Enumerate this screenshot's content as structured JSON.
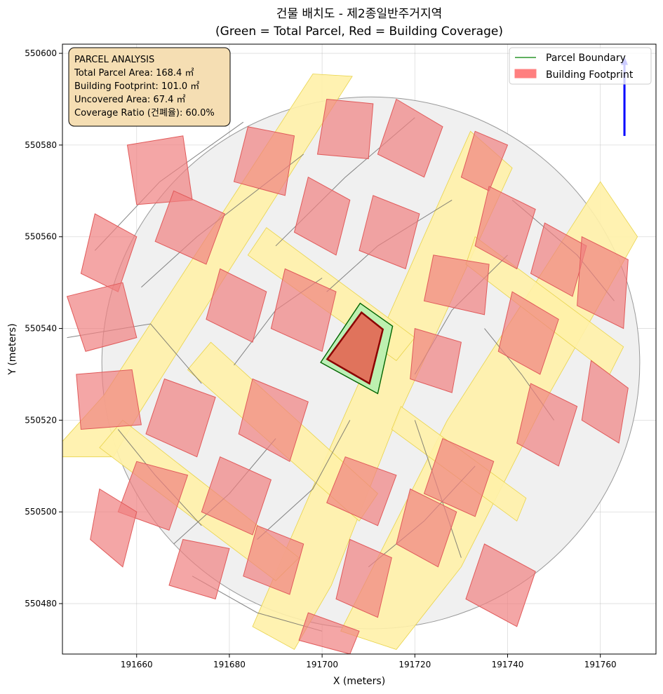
{
  "chart_data": {
    "type": "map",
    "title_line1": "건물 배치도 - 제2종일반주거지역",
    "title_line2": "(Green = Total Parcel, Red = Building Coverage)",
    "xlabel": "X (meters)",
    "ylabel": "Y (meters)",
    "xlim": [
      191644,
      191772
    ],
    "ylim": [
      550469,
      550602
    ],
    "xticks": [
      191660,
      191680,
      191700,
      191720,
      191740,
      191760
    ],
    "yticks": [
      550480,
      550500,
      550520,
      550540,
      550560,
      550580,
      550600
    ],
    "grid": true,
    "legend_position": "top-right",
    "legend": [
      {
        "label": "Parcel Boundary",
        "color": "#008000",
        "kind": "line"
      },
      {
        "label": "Building Footprint",
        "color": "#ff7f7f",
        "kind": "patch"
      }
    ],
    "info_box": {
      "lines": [
        "PARCEL ANALYSIS",
        "Total Parcel Area: 168.4 ㎡",
        "Building Footprint: 101.0 ㎡",
        "Uncovered Area: 67.4 ㎡",
        "Coverage Ratio (건폐율): 60.0%"
      ]
    },
    "subject_parcel": {
      "total_area_m2": 168.4,
      "building_area_m2": 101.0,
      "uncovered_area_m2": 67.4,
      "coverage_ratio_pct": 60.0,
      "parcel_polygon": [
        [
          191708.2,
          550545.5
        ],
        [
          191715.2,
          550540.5
        ],
        [
          191712.0,
          550525.8
        ],
        [
          191699.7,
          550532.6
        ]
      ],
      "building_polygon": [
        [
          191708.5,
          550543.5
        ],
        [
          191713.1,
          550539.8
        ],
        [
          191710.2,
          550528.0
        ],
        [
          191701.1,
          550533.3
        ]
      ]
    },
    "north_arrow": {
      "x": 191765.2,
      "y_start": 550582,
      "y_end": 550599
    },
    "site_circle": {
      "center": [
        191710.5,
        550532.5
      ],
      "radius": 58
    },
    "roads": [
      [
        [
          191698.0,
          550595.5
        ],
        [
          191706.5,
          550595.0
        ],
        [
          191672.0,
          550540.0
        ],
        [
          191660.5,
          550521.5
        ],
        [
          191655.0,
          550512.0
        ],
        [
          191641.0,
          550512.0
        ],
        [
          191653.0,
          550525.5
        ]
      ],
      [
        [
          191732.0,
          550583.0
        ],
        [
          191741.0,
          550575.0
        ],
        [
          191716.0,
          550520.0
        ],
        [
          191702.0,
          550484.0
        ],
        [
          191694.0,
          550470.0
        ],
        [
          191685.0,
          550475.0
        ],
        [
          191700.0,
          550510.0
        ]
      ],
      [
        [
          191760.0,
          550572.0
        ],
        [
          191768.0,
          550560.0
        ],
        [
          191748.0,
          550524.0
        ],
        [
          191730.0,
          550488.0
        ],
        [
          191716.0,
          550470.0
        ],
        [
          191704.0,
          550474.0
        ],
        [
          191727.0,
          550520.0
        ]
      ]
    ],
    "streets": [
      [
        [
          191688.0,
          550562.0
        ],
        [
          191720.0,
          550538.0
        ],
        [
          191716.0,
          550533.0
        ],
        [
          191684.0,
          550556.0
        ]
      ],
      [
        [
          191676.0,
          550537.0
        ],
        [
          191712.0,
          550504.0
        ],
        [
          191708.0,
          550498.0
        ],
        [
          191671.0,
          550531.0
        ]
      ],
      [
        [
          191657.0,
          550520.0
        ],
        [
          191695.0,
          550490.0
        ],
        [
          191690.0,
          550485.0
        ],
        [
          191652.0,
          550514.0
        ]
      ],
      [
        [
          191717.0,
          550523.0
        ],
        [
          191744.0,
          550503.0
        ],
        [
          191742.0,
          550498.0
        ],
        [
          191715.0,
          550518.0
        ]
      ],
      [
        [
          191733.0,
          550560.0
        ],
        [
          191765.0,
          550536.0
        ],
        [
          191762.0,
          550530.0
        ],
        [
          191731.0,
          550554.0
        ]
      ]
    ],
    "buildings": [
      [
        [
          191658,
          550580
        ],
        [
          191670,
          550582
        ],
        [
          191672,
          550568
        ],
        [
          191660,
          550567
        ]
      ],
      [
        [
          191684,
          550584
        ],
        [
          191694,
          550582
        ],
        [
          191692,
          550569
        ],
        [
          191681,
          550572
        ]
      ],
      [
        [
          191701,
          550590
        ],
        [
          191711,
          550589
        ],
        [
          191710,
          550577
        ],
        [
          191699,
          550578
        ]
      ],
      [
        [
          191716,
          550590
        ],
        [
          191726,
          550584
        ],
        [
          191722,
          550573
        ],
        [
          191712,
          550578
        ]
      ],
      [
        [
          191733,
          550583
        ],
        [
          191740,
          550580
        ],
        [
          191736,
          550570
        ],
        [
          191730,
          550573
        ]
      ],
      [
        [
          191651,
          550565
        ],
        [
          191660,
          550560
        ],
        [
          191656,
          550548
        ],
        [
          191648,
          550552
        ]
      ],
      [
        [
          191668,
          550570
        ],
        [
          191679,
          550565
        ],
        [
          191675,
          550554
        ],
        [
          191664,
          550559
        ]
      ],
      [
        [
          191697,
          550573
        ],
        [
          191706,
          550568
        ],
        [
          191703,
          550556
        ],
        [
          191694,
          550561
        ]
      ],
      [
        [
          191711,
          550569
        ],
        [
          191721,
          550565
        ],
        [
          191718,
          550553
        ],
        [
          191708,
          550557
        ]
      ],
      [
        [
          191736,
          550571
        ],
        [
          191746,
          550566
        ],
        [
          191742,
          550553
        ],
        [
          191733,
          550558
        ]
      ],
      [
        [
          191748,
          550563
        ],
        [
          191757,
          550558
        ],
        [
          191754,
          550547
        ],
        [
          191745,
          550552
        ]
      ],
      [
        [
          191645,
          550547
        ],
        [
          191657,
          550550
        ],
        [
          191660,
          550538
        ],
        [
          191649,
          550535
        ]
      ],
      [
        [
          191678,
          550553
        ],
        [
          191688,
          550548
        ],
        [
          191685,
          550537
        ],
        [
          191675,
          550542
        ]
      ],
      [
        [
          191692,
          550553
        ],
        [
          191703,
          550548
        ],
        [
          191700,
          550535
        ],
        [
          191689,
          550540
        ]
      ],
      [
        [
          191724,
          550556
        ],
        [
          191736,
          550554
        ],
        [
          191735,
          550543
        ],
        [
          191722,
          550546
        ]
      ],
      [
        [
          191741,
          550548
        ],
        [
          191751,
          550542
        ],
        [
          191747,
          550530
        ],
        [
          191738,
          550535
        ]
      ],
      [
        [
          191756,
          550560
        ],
        [
          191766,
          550555
        ],
        [
          191765,
          550540
        ],
        [
          191755,
          550545
        ]
      ],
      [
        [
          191647,
          550530
        ],
        [
          191659,
          550531
        ],
        [
          191661,
          550519
        ],
        [
          191648,
          550518
        ]
      ],
      [
        [
          191666,
          550529
        ],
        [
          191677,
          550525
        ],
        [
          191673,
          550512
        ],
        [
          191662,
          550517
        ]
      ],
      [
        [
          191685,
          550529
        ],
        [
          191697,
          550524
        ],
        [
          191693,
          550511
        ],
        [
          191682,
          550517
        ]
      ],
      [
        [
          191720,
          550540
        ],
        [
          191730,
          550537
        ],
        [
          191728,
          550526
        ],
        [
          191719,
          550529
        ]
      ],
      [
        [
          191745,
          550528
        ],
        [
          191755,
          550523
        ],
        [
          191751,
          550510
        ],
        [
          191742,
          550515
        ]
      ],
      [
        [
          191758,
          550533
        ],
        [
          191766,
          550527
        ],
        [
          191764,
          550515
        ],
        [
          191756,
          550520
        ]
      ],
      [
        [
          191660,
          550511
        ],
        [
          191671,
          550508
        ],
        [
          191667,
          550496
        ],
        [
          191656,
          550500
        ]
      ],
      [
        [
          191678,
          550512
        ],
        [
          191689,
          550507
        ],
        [
          191685,
          550495
        ],
        [
          191674,
          550500
        ]
      ],
      [
        [
          191705,
          550512
        ],
        [
          191716,
          550508
        ],
        [
          191712,
          550497
        ],
        [
          191701,
          550502
        ]
      ],
      [
        [
          191726,
          550516
        ],
        [
          191737,
          550511
        ],
        [
          191733,
          550499
        ],
        [
          191722,
          550504
        ]
      ],
      [
        [
          191735,
          550493
        ],
        [
          191746,
          550487
        ],
        [
          191742,
          550475
        ],
        [
          191731,
          550481
        ]
      ],
      [
        [
          191670,
          550494
        ],
        [
          191680,
          550492
        ],
        [
          191677,
          550481
        ],
        [
          191667,
          550484
        ]
      ],
      [
        [
          191686,
          550497
        ],
        [
          191696,
          550493
        ],
        [
          191693,
          550482
        ],
        [
          191683,
          550486
        ]
      ],
      [
        [
          191706,
          550494
        ],
        [
          191715,
          550490
        ],
        [
          191712,
          550477
        ],
        [
          191703,
          550481
        ]
      ],
      [
        [
          191719,
          550505
        ],
        [
          191729,
          550500
        ],
        [
          191725,
          550488
        ],
        [
          191716,
          550493
        ]
      ],
      [
        [
          191697,
          550478
        ],
        [
          191708,
          550474
        ],
        [
          191706,
          550469
        ],
        [
          191695,
          550472
        ]
      ],
      [
        [
          191652,
          550505
        ],
        [
          191660,
          550500
        ],
        [
          191657,
          550488
        ],
        [
          191650,
          550494
        ]
      ]
    ],
    "parcel_lines": [
      [
        [
          191651,
          550557
        ],
        [
          191665,
          550572
        ],
        [
          191683,
          550585
        ]
      ],
      [
        [
          191661,
          550549
        ],
        [
          191673,
          550560
        ],
        [
          191696,
          550578
        ]
      ],
      [
        [
          191690,
          550558
        ],
        [
          191705,
          550573
        ],
        [
          191720,
          550586
        ]
      ],
      [
        [
          191701,
          550548
        ],
        [
          191712,
          550558
        ],
        [
          191728,
          550568
        ]
      ],
      [
        [
          191645,
          550538
        ],
        [
          191663,
          550541
        ],
        [
          191674,
          550528
        ]
      ],
      [
        [
          191681,
          550532
        ],
        [
          191690,
          550544
        ],
        [
          191700,
          550551
        ]
      ],
      [
        [
          191720,
          550530
        ],
        [
          191728,
          550544
        ],
        [
          191740,
          550556
        ]
      ],
      [
        [
          191720,
          550520
        ],
        [
          191725,
          550505
        ],
        [
          191730,
          550490
        ]
      ],
      [
        [
          191735,
          550540
        ],
        [
          191743,
          550530
        ],
        [
          191750,
          550520
        ]
      ],
      [
        [
          191668,
          550493
        ],
        [
          191680,
          550504
        ],
        [
          191690,
          550516
        ]
      ],
      [
        [
          191686,
          550494
        ],
        [
          191698,
          550505
        ],
        [
          191706,
          550520
        ]
      ],
      [
        [
          191741,
          550568
        ],
        [
          191755,
          550556
        ],
        [
          191763,
          550546
        ]
      ],
      [
        [
          191656,
          550518
        ],
        [
          191664,
          550508
        ],
        [
          191674,
          550497
        ]
      ],
      [
        [
          191672,
          550486
        ],
        [
          191686,
          550478
        ],
        [
          191700,
          550474
        ]
      ],
      [
        [
          191710,
          550488
        ],
        [
          191722,
          550498
        ],
        [
          191733,
          550510
        ]
      ]
    ]
  }
}
